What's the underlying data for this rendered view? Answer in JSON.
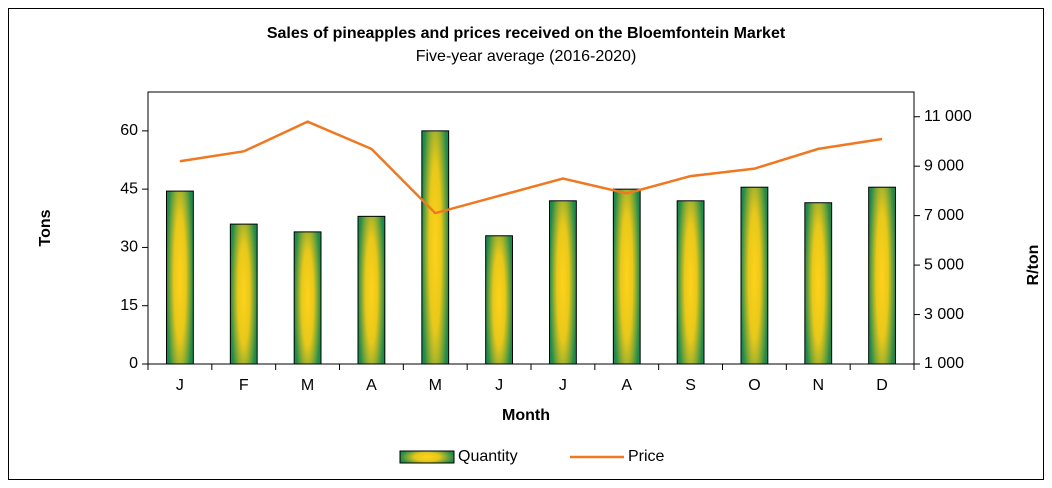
{
  "chart_data": {
    "type": "bar_line",
    "title": "Sales of pineapples and prices received on the Bloemfontein Market",
    "subtitle": "Five-year average (2016-2020)",
    "x_label": "Month",
    "y_label": "Tons",
    "y2_label": "R/ton",
    "categories": [
      "J",
      "F",
      "M",
      "A",
      "M",
      "J",
      "J",
      "A",
      "S",
      "O",
      "N",
      "D"
    ],
    "series": [
      {
        "name": "Quantity",
        "type": "bar",
        "color": "#2e8b57",
        "values": [
          44.5,
          36,
          34,
          38,
          60,
          33,
          42,
          45,
          42,
          45.5,
          41.5,
          45.5
        ]
      },
      {
        "name": "Price",
        "type": "line",
        "axis": "y2",
        "color": "#f07820",
        "values": [
          9200,
          9600,
          10800,
          9700,
          7100,
          7800,
          8500,
          7900,
          8600,
          8900,
          9700,
          10100
        ]
      }
    ],
    "ylim": [
      0,
      70
    ],
    "yticks": [
      0,
      15,
      30,
      45,
      60
    ],
    "y2lim": [
      1000,
      12000
    ],
    "y2ticks": [
      {
        "value": 1000,
        "label": "1 000"
      },
      {
        "value": 3000,
        "label": "3 000"
      },
      {
        "value": 5000,
        "label": "5 000"
      },
      {
        "value": 7000,
        "label": "7 000"
      },
      {
        "value": 9000,
        "label": "9 000"
      },
      {
        "value": 11000,
        "label": "11 000"
      }
    ],
    "legend": "bottom"
  }
}
